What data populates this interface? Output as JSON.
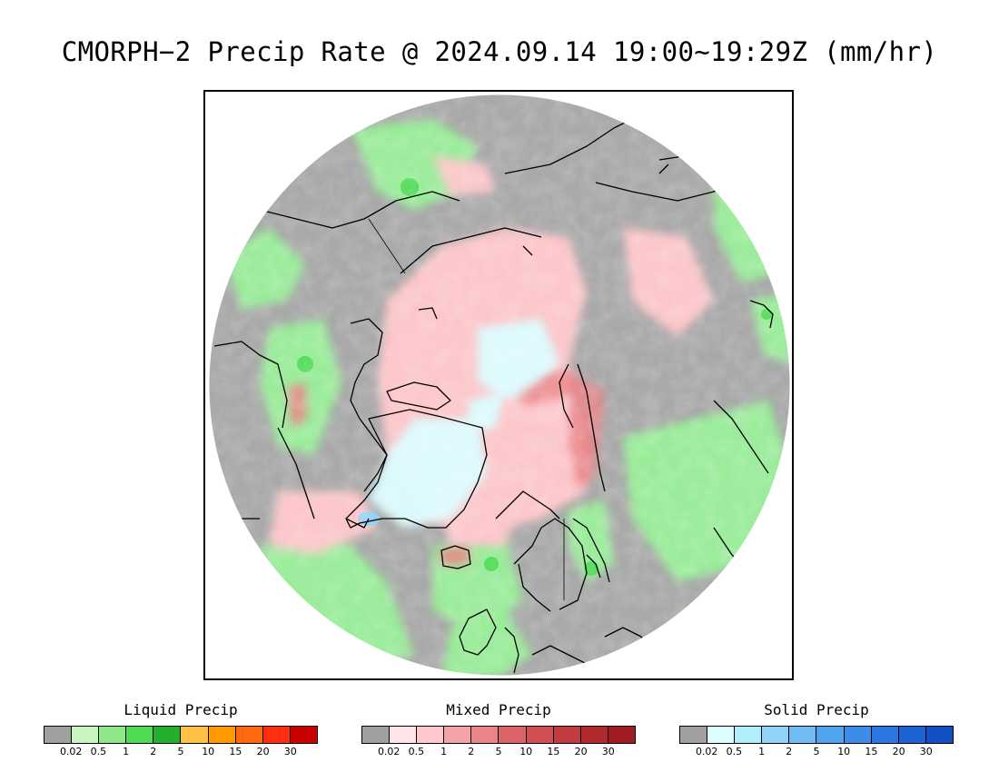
{
  "title": "CMORPH−2 Precip Rate @ 2024.09.14 19:00~19:29Z (mm/hr)",
  "map": {
    "projection": "north polar stereographic",
    "background_color": "#a9a9a9",
    "coastline_color": "#000000"
  },
  "legends": [
    {
      "key": "liquid",
      "title": "Liquid Precip",
      "colors": [
        "#a0a0a0",
        "#c8f5c0",
        "#8ee88a",
        "#4fdc55",
        "#23b02a",
        "#ffc044",
        "#ff9a00",
        "#ff6a10",
        "#ff3010",
        "#c80000"
      ],
      "ticks": [
        "0.02",
        "0.5",
        "1",
        "2",
        "5",
        "10",
        "15",
        "20",
        "30"
      ]
    },
    {
      "key": "mixed",
      "title": "Mixed Precip",
      "colors": [
        "#a0a0a0",
        "#ffe4e8",
        "#ffc8cc",
        "#f4a4a8",
        "#ea8488",
        "#dc6468",
        "#d05054",
        "#c03c40",
        "#b02a2e",
        "#a01c20"
      ],
      "ticks": [
        "0.02",
        "0.5",
        "1",
        "2",
        "5",
        "10",
        "15",
        "20",
        "30"
      ]
    },
    {
      "key": "solid",
      "title": "Solid Precip",
      "colors": [
        "#a0a0a0",
        "#dcfcff",
        "#b0eefc",
        "#90d4f8",
        "#70bcf4",
        "#50a4ee",
        "#3c8ce8",
        "#2c78e0",
        "#1c64d4",
        "#1050c4"
      ],
      "ticks": [
        "0.02",
        "0.5",
        "1",
        "2",
        "5",
        "10",
        "15",
        "20",
        "30"
      ]
    }
  ]
}
